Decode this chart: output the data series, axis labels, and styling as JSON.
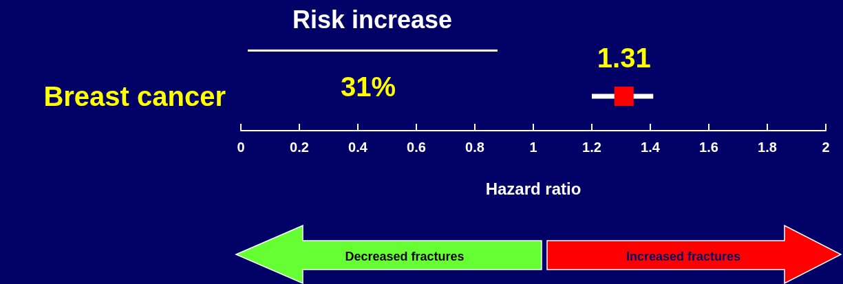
{
  "chart_data": {
    "type": "scatter",
    "orientation": "horizontal",
    "categories": [
      "Breast cancer"
    ],
    "xlabel": "Hazard ratio",
    "values": [
      1.31
    ],
    "errors": [
      [
        1.2,
        1.41
      ]
    ],
    "color": "#ff0000",
    "data_labels": true,
    "marker": "square",
    "xlim": [
      0,
      2
    ],
    "xticks": [
      0,
      0.2,
      0.4,
      0.6,
      0.8,
      1,
      1.2,
      1.4,
      1.6,
      1.8,
      2
    ],
    "annotations": [
      "Risk increase",
      "31%",
      "Decreased fractures",
      "Increased fractures"
    ]
  }
}
